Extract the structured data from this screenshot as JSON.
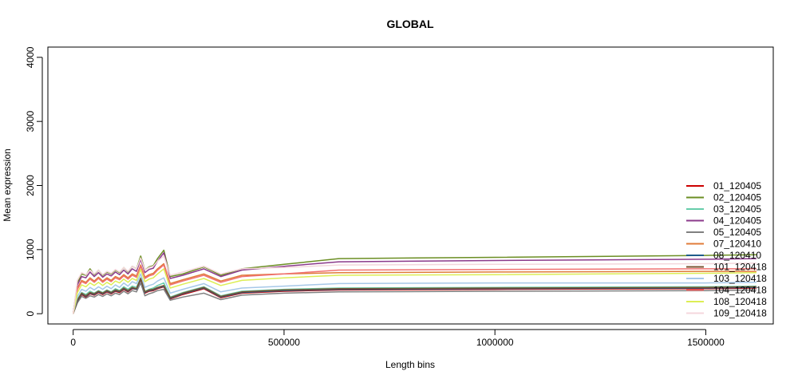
{
  "chart_data": {
    "type": "line",
    "title": "GLOBAL",
    "xlabel": "Length bins",
    "ylabel": "Mean expression",
    "xlim": [
      -60000,
      1660000
    ],
    "ylim": [
      -160,
      4160
    ],
    "x_ticks": [
      0,
      500000,
      1000000,
      1500000
    ],
    "x_tick_labels": [
      "0",
      "500000",
      "1000000",
      "1500000"
    ],
    "y_ticks": [
      0,
      1000,
      2000,
      3000,
      4000
    ],
    "y_tick_labels": [
      "0",
      "1000",
      "2000",
      "3000",
      "4000"
    ],
    "grid": false,
    "legend_position": "right",
    "x": [
      0,
      10000,
      20000,
      30000,
      40000,
      50000,
      60000,
      70000,
      80000,
      90000,
      100000,
      110000,
      120000,
      130000,
      140000,
      150000,
      160000,
      170000,
      180000,
      190000,
      200000,
      215000,
      230000,
      260000,
      310000,
      350000,
      400000,
      500000,
      630000,
      1000000,
      1500000,
      1620000
    ],
    "series": [
      {
        "name": "01_120405",
        "color": "#cc0000",
        "values": [
          0,
          190,
          300,
          260,
          310,
          290,
          330,
          300,
          340,
          310,
          350,
          330,
          380,
          340,
          390,
          380,
          530,
          320,
          350,
          360,
          390,
          420,
          230,
          300,
          390,
          250,
          320,
          350,
          370,
          380,
          390,
          400
        ]
      },
      {
        "name": "02_120405",
        "color": "#6b8e23",
        "values": [
          0,
          480,
          620,
          600,
          700,
          610,
          680,
          600,
          650,
          620,
          680,
          640,
          720,
          650,
          740,
          700,
          900,
          680,
          730,
          750,
          860,
          990,
          580,
          620,
          730,
          600,
          700,
          770,
          860,
          880,
          910,
          920
        ]
      },
      {
        "name": "03_120405",
        "color": "#66cdaa",
        "values": [
          0,
          230,
          330,
          300,
          350,
          320,
          360,
          330,
          370,
          340,
          390,
          360,
          420,
          380,
          430,
          410,
          560,
          350,
          380,
          400,
          440,
          480,
          260,
          330,
          420,
          280,
          350,
          380,
          400,
          410,
          420,
          430
        ]
      },
      {
        "name": "04_120405",
        "color": "#8b3a8b",
        "values": [
          0,
          450,
          580,
          560,
          650,
          580,
          640,
          570,
          620,
          590,
          650,
          610,
          680,
          620,
          700,
          660,
          850,
          640,
          690,
          710,
          820,
          950,
          550,
          600,
          700,
          580,
          680,
          740,
          810,
          830,
          850,
          860
        ]
      },
      {
        "name": "05_120405",
        "color": "#808080",
        "values": [
          0,
          170,
          270,
          240,
          280,
          260,
          300,
          270,
          310,
          280,
          320,
          300,
          350,
          310,
          360,
          340,
          480,
          280,
          310,
          330,
          360,
          380,
          210,
          260,
          320,
          220,
          290,
          320,
          340,
          350,
          360,
          370
        ]
      },
      {
        "name": "07_120410",
        "color": "#e07b39",
        "values": [
          0,
          400,
          520,
          490,
          560,
          510,
          570,
          510,
          560,
          520,
          580,
          550,
          610,
          560,
          620,
          590,
          760,
          570,
          610,
          630,
          700,
          780,
          470,
          530,
          620,
          510,
          600,
          620,
          640,
          650,
          660,
          660
        ]
      },
      {
        "name": "08_120410",
        "color": "#1f5c8a",
        "values": [
          0,
          200,
          310,
          270,
          320,
          300,
          340,
          310,
          350,
          320,
          360,
          340,
          390,
          350,
          400,
          380,
          540,
          330,
          360,
          370,
          400,
          430,
          240,
          310,
          400,
          260,
          330,
          360,
          380,
          390,
          400,
          410
        ]
      },
      {
        "name": "101_120418",
        "color": "#7a5230",
        "values": [
          0,
          210,
          320,
          280,
          330,
          310,
          350,
          320,
          360,
          330,
          370,
          350,
          400,
          360,
          410,
          390,
          550,
          340,
          370,
          380,
          410,
          440,
          250,
          320,
          410,
          270,
          340,
          370,
          390,
          400,
          410,
          420
        ]
      },
      {
        "name": "103_120418",
        "color": "#a6c8e8",
        "values": [
          0,
          270,
          380,
          350,
          410,
          370,
          420,
          380,
          430,
          390,
          450,
          410,
          480,
          430,
          500,
          470,
          620,
          410,
          440,
          460,
          510,
          560,
          320,
          380,
          470,
          340,
          400,
          430,
          470,
          480,
          480,
          490
        ]
      },
      {
        "name": "104_120418",
        "color": "#f07070",
        "values": [
          0,
          380,
          500,
          470,
          540,
          490,
          550,
          490,
          540,
          500,
          560,
          530,
          590,
          540,
          600,
          570,
          740,
          550,
          590,
          610,
          680,
          760,
          450,
          510,
          600,
          490,
          580,
          620,
          680,
          690,
          700,
          700
        ]
      },
      {
        "name": "108_120418",
        "color": "#ddee55",
        "values": [
          0,
          330,
          450,
          420,
          480,
          440,
          490,
          440,
          490,
          450,
          510,
          480,
          540,
          490,
          550,
          520,
          690,
          500,
          540,
          560,
          620,
          700,
          400,
          460,
          550,
          440,
          520,
          560,
          600,
          610,
          630,
          640
        ]
      },
      {
        "name": "109_120418",
        "color": "#f4d7dc",
        "values": [
          0,
          520,
          640,
          610,
          680,
          620,
          680,
          610,
          660,
          630,
          690,
          650,
          720,
          660,
          740,
          700,
          870,
          680,
          720,
          740,
          820,
          900,
          600,
          650,
          740,
          620,
          700,
          720,
          760,
          770,
          780,
          790
        ]
      }
    ]
  }
}
